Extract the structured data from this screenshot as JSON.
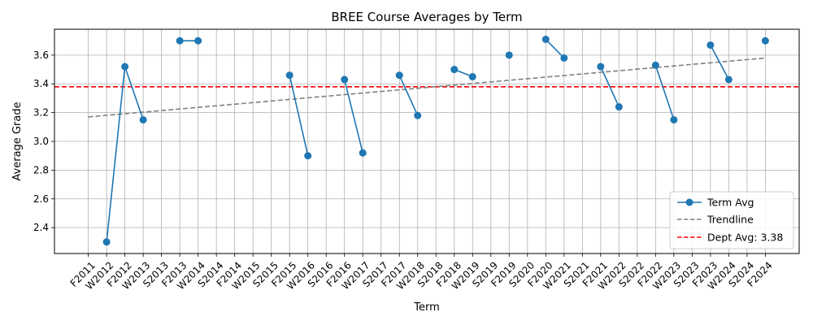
{
  "chart_data": {
    "type": "line",
    "title": "BREE Course Averages by Term",
    "xlabel": "Term",
    "ylabel": "Average Grade",
    "categories": [
      "F2011",
      "W2012",
      "F2012",
      "W2013",
      "S2013",
      "F2013",
      "W2014",
      "S2014",
      "F2014",
      "W2015",
      "S2015",
      "F2015",
      "W2016",
      "S2016",
      "F2016",
      "W2017",
      "S2017",
      "F2017",
      "W2018",
      "S2018",
      "F2018",
      "W2019",
      "S2019",
      "F2019",
      "S2020",
      "F2020",
      "W2021",
      "S2021",
      "F2021",
      "W2022",
      "S2022",
      "F2022",
      "W2023",
      "S2023",
      "F2023",
      "W2024",
      "S2024",
      "F2024"
    ],
    "ylim": [
      2.22,
      3.78
    ],
    "yticks": [
      2.4,
      2.6,
      2.8,
      3.0,
      3.2,
      3.4,
      3.6
    ],
    "ytick_labels": [
      "2.4",
      "2.6",
      "2.8",
      "3.0",
      "3.2",
      "3.4",
      "3.6"
    ],
    "grid": true,
    "legend_position": "lower-right",
    "series": [
      {
        "name": "Term Avg",
        "color": "#1f77b4",
        "values": [
          null,
          2.3,
          3.52,
          3.15,
          null,
          3.7,
          3.7,
          null,
          null,
          null,
          null,
          3.46,
          2.9,
          null,
          3.43,
          2.92,
          null,
          3.46,
          3.18,
          null,
          3.5,
          3.45,
          null,
          3.6,
          null,
          3.71,
          3.58,
          null,
          3.52,
          3.24,
          null,
          3.53,
          3.15,
          null,
          3.67,
          3.43,
          null,
          3.7
        ]
      },
      {
        "name": "Trendline",
        "color": "#808080",
        "style": "dashed",
        "start": 3.17,
        "end": 3.58
      }
    ],
    "reference_line": {
      "name": "Dept Avg: 3.38",
      "value": 3.38,
      "color": "#ff0000",
      "style": "dashed"
    }
  }
}
